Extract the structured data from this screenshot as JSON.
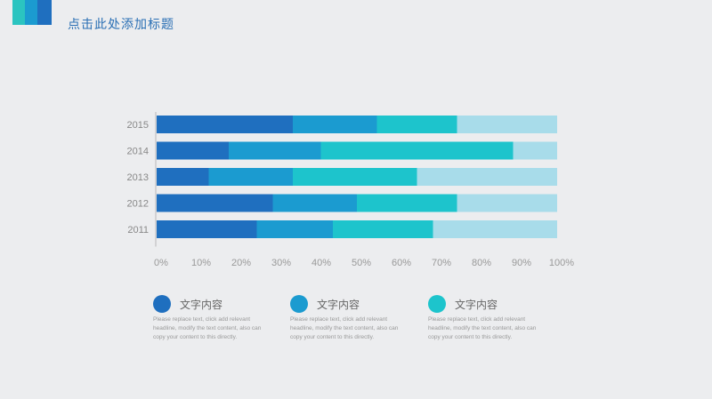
{
  "slide": {
    "title": "点击此处添加标题"
  },
  "colors": [
    "#1f6fbf",
    "#1b9bd0",
    "#1dc4cc",
    "#a8dcea"
  ],
  "chart_data": {
    "type": "bar",
    "orientation": "horizontal",
    "stacked": true,
    "categories": [
      "2015",
      "2014",
      "2013",
      "2012",
      "2011"
    ],
    "series": [
      {
        "values": [
          34,
          18,
          13,
          29,
          25
        ]
      },
      {
        "values": [
          21,
          23,
          21,
          21,
          19
        ]
      },
      {
        "values": [
          20,
          48,
          31,
          25,
          25
        ]
      },
      {
        "values": [
          25,
          11,
          35,
          25,
          31
        ]
      }
    ],
    "xticks": [
      "0%",
      "10%",
      "20%",
      "30%",
      "40%",
      "50%",
      "60%",
      "70%",
      "80%",
      "90%",
      "100%"
    ],
    "xlim": [
      0,
      100
    ]
  },
  "legend": [
    {
      "label": "文字内容",
      "desc": "Please replace text, click add relevant headline, modify the text content, also can copy your content to this directly."
    },
    {
      "label": "文字内容",
      "desc": "Please replace text, click add relevant headline, modify the text content, also can copy your content to this directly."
    },
    {
      "label": "文字内容",
      "desc": "Please replace text, click add relevant headline, modify the text content, also can copy your content to this directly."
    }
  ]
}
